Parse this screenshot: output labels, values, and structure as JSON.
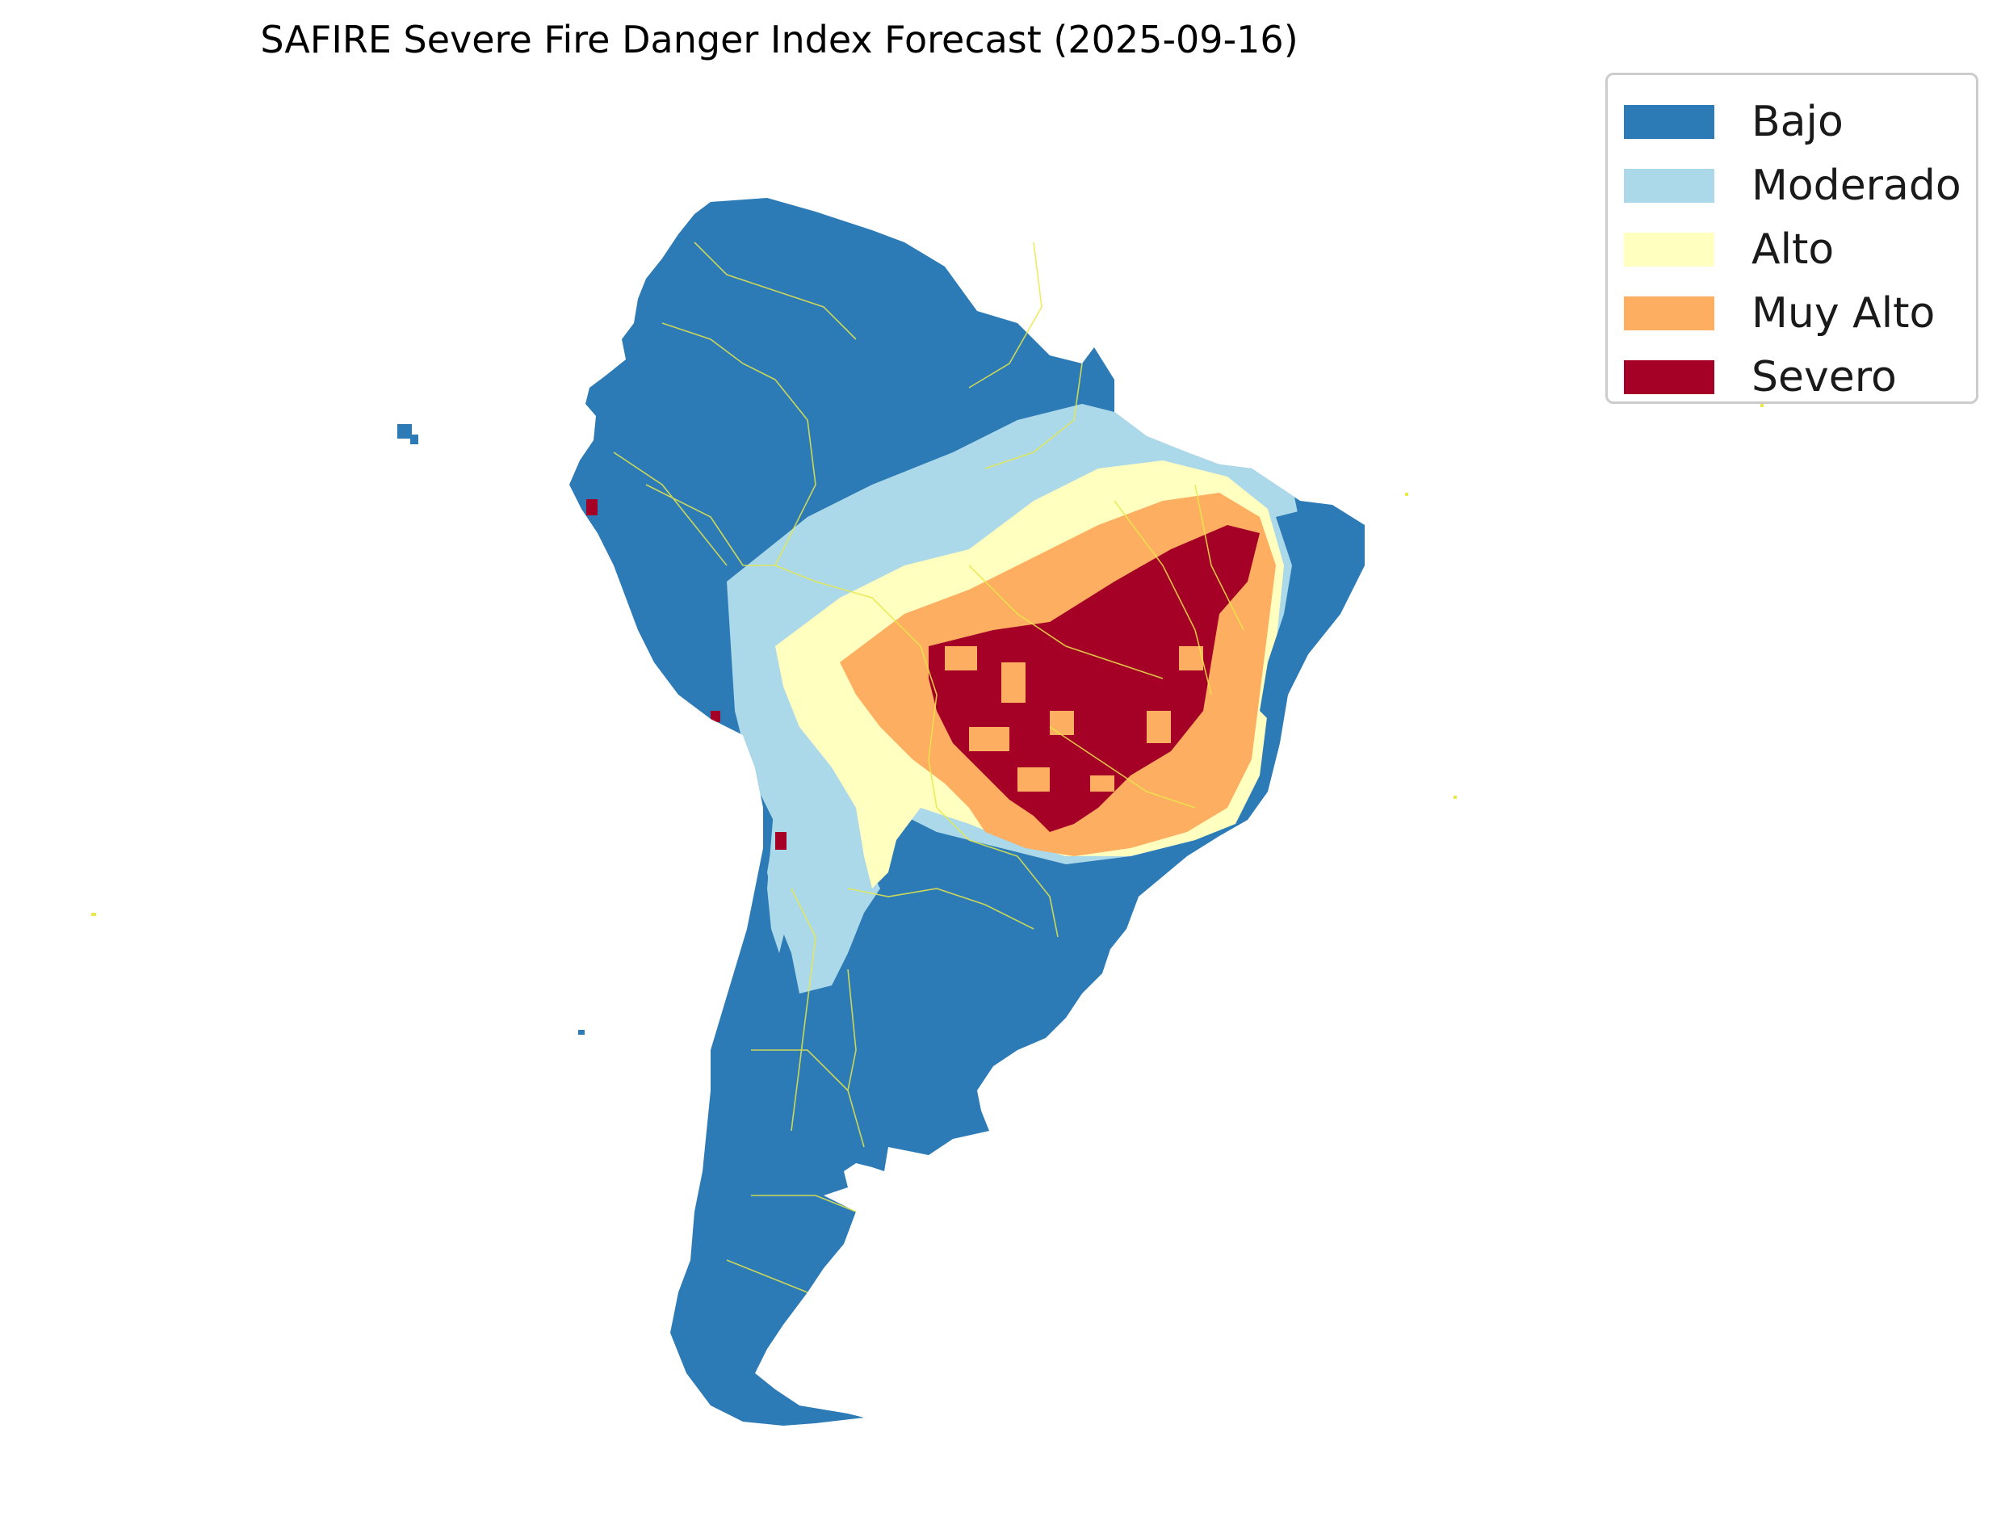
{
  "title": "SAFIRE Severe Fire Danger Index Forecast (2025-09-16)",
  "legend": {
    "items": [
      {
        "label": "Bajo",
        "color": "#2c7bb6"
      },
      {
        "label": "Moderado",
        "color": "#abd9e9"
      },
      {
        "label": "Alto",
        "color": "#ffffbf"
      },
      {
        "label": "Muy Alto",
        "color": "#fdae61"
      },
      {
        "label": "Severo",
        "color": "#a50026"
      }
    ]
  },
  "map": {
    "region": "South America",
    "border_color": "#e8e84a",
    "background": "#ffffff"
  }
}
